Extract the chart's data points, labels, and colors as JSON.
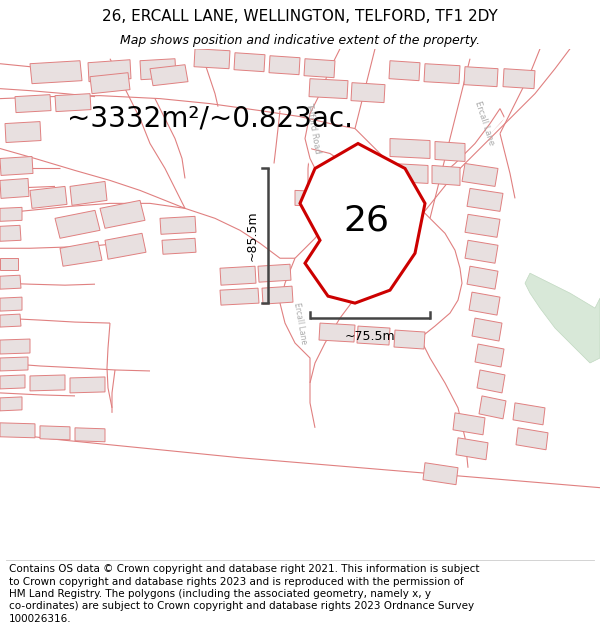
{
  "title": "26, ERCALL LANE, WELLINGTON, TELFORD, TF1 2DY",
  "subtitle": "Map shows position and indicative extent of the property.",
  "area_label": "~3332m²/~0.823ac.",
  "plot_number": "26",
  "width_label": "~75.5m",
  "height_label": "~85.5m",
  "footer_line1": "Contains OS data © Crown copyright and database right 2021. This information is subject",
  "footer_line2": "to Crown copyright and database rights 2023 and is reproduced with the permission of",
  "footer_line3": "HM Land Registry. The polygons (including the associated geometry, namely x, y",
  "footer_line4": "co-ordinates) are subject to Crown copyright and database rights 2023 Ordnance Survey",
  "footer_line5": "100026316.",
  "map_bg": "#ffffff",
  "road_fill": "#ffffff",
  "road_edge": "#e08080",
  "building_fill": "#e8e0e0",
  "building_edge": "#e08080",
  "plot_outline_color": "#cc0000",
  "title_fontsize": 11,
  "subtitle_fontsize": 9,
  "area_fontsize": 20,
  "plot_num_fontsize": 26,
  "footer_fontsize": 7.5,
  "road_label_color": "#aaaaaa",
  "scale_color": "#444444",
  "greenish": "#d8e8d8"
}
